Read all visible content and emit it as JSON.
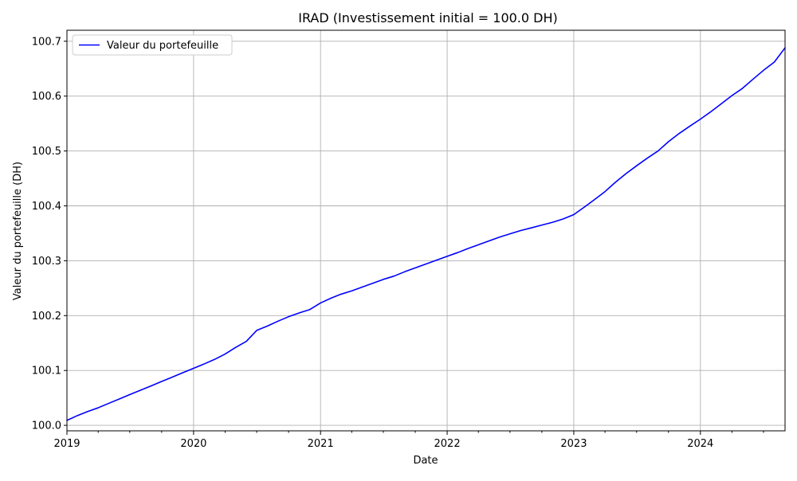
{
  "chart_data": {
    "type": "line",
    "title": "IRAD (Investissement initial = 100.0 DH)",
    "xlabel": "Date",
    "ylabel": "Valeur du portefeuille (DH)",
    "x_tick_labels": [
      "2019",
      "2020",
      "2021",
      "2022",
      "2023",
      "2024"
    ],
    "y_tick_labels": [
      "100.0",
      "100.1",
      "100.2",
      "100.3",
      "100.4",
      "100.5",
      "100.6",
      "100.7"
    ],
    "y_ticks": [
      100.0,
      100.1,
      100.2,
      100.3,
      100.4,
      100.5,
      100.6,
      100.7
    ],
    "ylim": [
      99.99,
      100.72
    ],
    "xlim": [
      "2019-01-01",
      "2024-09-01"
    ],
    "grid": true,
    "legend_position": "top-left",
    "series": [
      {
        "name": "Valeur du portefeuille",
        "color": "#0000ff",
        "x": [
          "2019-01-01",
          "2019-02-01",
          "2019-03-01",
          "2019-04-01",
          "2019-05-01",
          "2019-06-01",
          "2019-07-01",
          "2019-08-01",
          "2019-09-01",
          "2019-10-01",
          "2019-11-01",
          "2019-12-01",
          "2020-01-01",
          "2020-02-01",
          "2020-03-01",
          "2020-04-01",
          "2020-05-01",
          "2020-06-01",
          "2020-07-01",
          "2020-08-01",
          "2020-09-01",
          "2020-10-01",
          "2020-11-01",
          "2020-12-01",
          "2021-01-01",
          "2021-02-01",
          "2021-03-01",
          "2021-04-01",
          "2021-05-01",
          "2021-06-01",
          "2021-07-01",
          "2021-08-01",
          "2021-09-01",
          "2021-10-01",
          "2021-11-01",
          "2021-12-01",
          "2022-01-01",
          "2022-02-01",
          "2022-03-01",
          "2022-04-01",
          "2022-05-01",
          "2022-06-01",
          "2022-07-01",
          "2022-08-01",
          "2022-09-01",
          "2022-10-01",
          "2022-11-01",
          "2022-12-01",
          "2023-01-01",
          "2023-02-01",
          "2023-03-01",
          "2023-04-01",
          "2023-05-01",
          "2023-06-01",
          "2023-07-01",
          "2023-08-01",
          "2023-09-01",
          "2023-10-01",
          "2023-11-01",
          "2023-12-01",
          "2024-01-01",
          "2024-02-01",
          "2024-03-01",
          "2024-04-01",
          "2024-05-01",
          "2024-06-01",
          "2024-07-01",
          "2024-08-01",
          "2024-09-01"
        ],
        "y": [
          100.009,
          100.018,
          100.025,
          100.032,
          100.04,
          100.048,
          100.056,
          100.064,
          100.072,
          100.08,
          100.088,
          100.096,
          100.104,
          100.112,
          100.12,
          100.13,
          100.142,
          100.153,
          100.173,
          100.181,
          100.19,
          100.198,
          100.205,
          100.211,
          100.223,
          100.232,
          100.239,
          100.245,
          100.252,
          100.259,
          100.266,
          100.272,
          100.28,
          100.287,
          100.294,
          100.301,
          100.308,
          100.315,
          100.322,
          100.329,
          100.336,
          100.343,
          100.349,
          100.355,
          100.36,
          100.365,
          100.37,
          100.376,
          100.384,
          100.398,
          100.411,
          100.426,
          100.443,
          100.459,
          100.473,
          100.487,
          100.5,
          100.517,
          100.532,
          100.545,
          100.558,
          100.572,
          100.586,
          100.601,
          100.614,
          100.631,
          100.647,
          100.662,
          100.688
        ]
      }
    ]
  }
}
